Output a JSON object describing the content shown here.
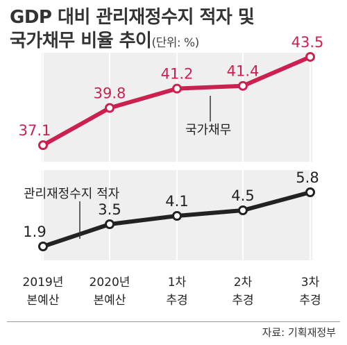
{
  "title": {
    "line1": "GDP 대비 관리재정수지 적자 및",
    "line2": "국가채무 비율 추이",
    "unit": "(단위: %)"
  },
  "source": "자료: 기획재정부",
  "chart_data": {
    "type": "line",
    "categories": [
      {
        "line1": "2019년",
        "line2": "본예산"
      },
      {
        "line1": "2020년",
        "line2": "본예산"
      },
      {
        "line1": "1차",
        "line2": "추경"
      },
      {
        "line1": "2차",
        "line2": "추경"
      },
      {
        "line1": "3차",
        "line2": "추경"
      }
    ],
    "series": [
      {
        "name": "국가채무",
        "values": [
          37.1,
          39.8,
          41.2,
          41.4,
          43.5
        ],
        "color": "#cc2050",
        "labels": [
          "37.1",
          "39.8",
          "41.2",
          "41.4",
          "43.5"
        ]
      },
      {
        "name": "관리재정수지 적자",
        "values": [
          1.9,
          3.5,
          4.1,
          4.5,
          5.8
        ],
        "color": "#222222",
        "labels": [
          "1.9",
          "3.5",
          "4.1",
          "4.5",
          "5.8"
        ]
      }
    ],
    "colors": {
      "panel_bg": "#efefef",
      "grid": "#ffffff"
    }
  }
}
